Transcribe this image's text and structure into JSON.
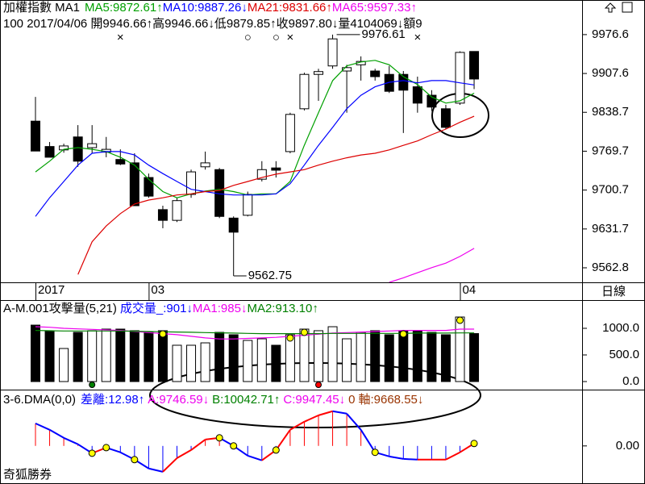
{
  "chart_data": [
    {
      "type": "candlestick",
      "title": "加權指數 MA1",
      "subtitle": "100 2017/04/06 開9946.66↑高9946.66↓低9879.85↑收9897.80↓量4104069↓額9",
      "axis_label": "日線",
      "categories": [
        "2017",
        null,
        null,
        null,
        null,
        null,
        null,
        null,
        "03",
        null,
        null,
        null,
        null,
        null,
        null,
        null,
        null,
        null,
        null,
        null,
        null,
        null,
        null,
        null,
        null,
        null,
        null,
        null,
        null,
        null,
        "04",
        null
      ],
      "open": [
        9823,
        9778,
        9772,
        9795,
        9776,
        9768,
        9755,
        9749,
        9723,
        9666,
        9647,
        9693,
        9742,
        9737,
        9651,
        9656,
        9720,
        9740,
        9769,
        9845,
        9906,
        9921,
        9912,
        9923,
        9912,
        9906,
        9906,
        9884,
        9869,
        9845,
        9855,
        9946.66
      ],
      "high": [
        9866,
        9786,
        9783,
        9816,
        9816,
        9795,
        9773,
        9766,
        9730,
        9673,
        9687,
        9737,
        9769,
        9740,
        9654,
        9698,
        9752,
        9752,
        9838,
        9909,
        9916,
        9976.61,
        9923,
        9938,
        9916,
        9921,
        9912,
        9902,
        9878,
        9852,
        9947,
        9946.66
      ],
      "low": [
        9770,
        9759,
        9767,
        9742,
        9766,
        9759,
        9745,
        9673,
        9687,
        9633,
        9644,
        9687,
        9737,
        9651,
        9562.75,
        9654,
        9716,
        9723,
        9766,
        9842,
        9859,
        9916,
        9838,
        9895,
        9895,
        9873,
        9802,
        9838,
        9841,
        9809,
        9852,
        9879.85
      ],
      "close": [
        9770,
        9759,
        9779,
        9752,
        9783,
        9773,
        9747,
        9673,
        9690,
        9647,
        9682,
        9733,
        9749,
        9654,
        9626,
        9693,
        9737,
        9736,
        9835,
        9906,
        9911,
        9969,
        9918,
        9929,
        9902,
        9876,
        9878,
        9855,
        9848,
        9812,
        9945,
        9897.8
      ],
      "up_color": "#ffffff",
      "down_color": "#000000",
      "signals": [
        null,
        null,
        null,
        null,
        null,
        null,
        "×",
        null,
        null,
        null,
        null,
        null,
        null,
        null,
        null,
        "○",
        null,
        "○",
        "×",
        null,
        null,
        null,
        null,
        null,
        null,
        null,
        null,
        "×",
        null,
        null,
        null,
        null
      ],
      "signal_color": "#ff0000",
      "series": [
        {
          "name": "MA5:9872.61↑",
          "color": "#00a000",
          "values": [
            9733,
            9752,
            9773,
            9776,
            9773,
            9769,
            9759,
            9745,
            9720,
            9698,
            9687,
            9694,
            9699,
            9702,
            9698,
            9692,
            9694,
            9694,
            9716,
            9780,
            9838,
            9895,
            9921,
            9928,
            9931,
            9923,
            9902,
            9888,
            9866,
            9855,
            9859,
            9872.61
          ]
        },
        {
          "name": "MA10:9887.26↓",
          "color": "#0000ff",
          "values": [
            9654,
            9687,
            9716,
            9745,
            9766,
            9769,
            9769,
            9763,
            9745,
            9730,
            9716,
            9702,
            9698,
            9694,
            9692,
            9692,
            9692,
            9694,
            9712,
            9745,
            9780,
            9812,
            9845,
            9869,
            9884,
            9892,
            9895,
            9891,
            9895,
            9895,
            9891,
            9887.26
          ]
        },
        {
          "name": "MA21:9831.66↑",
          "color": "#dd0000",
          "values": [
            null,
            null,
            null,
            9551,
            9609,
            9637,
            9659,
            9676,
            9683,
            9687,
            9692,
            9694,
            9698,
            9700,
            9709,
            9716,
            9723,
            9729,
            9733,
            9737,
            9745,
            9752,
            9758,
            9763,
            9766,
            9772,
            9780,
            9788,
            9799,
            9809,
            9821,
            9831.66
          ]
        },
        {
          "name": "MA65:9597.33↑",
          "color": "#ee00ee",
          "values": [
            null,
            null,
            null,
            null,
            null,
            null,
            null,
            null,
            null,
            null,
            null,
            null,
            null,
            null,
            null,
            null,
            null,
            null,
            null,
            null,
            null,
            null,
            null,
            null,
            null,
            9537,
            9545,
            9554,
            9563,
            9571,
            9583,
            9597.33
          ]
        }
      ],
      "ylim": [
        9537,
        10038
      ],
      "yticks": [
        9976.6,
        9907.6,
        9838.7,
        9769.7,
        9700.7,
        9631.7,
        9562.8
      ]
    },
    {
      "type": "bar",
      "title": "A-M.001攻擊量(5,21)",
      "name": "成交量_:901↓",
      "name_color": "#0000ff",
      "values": [
        1060,
        955,
        621,
        924,
        955,
        985,
        985,
        955,
        924,
        955,
        682,
        682,
        727,
        924,
        879,
        773,
        803,
        682,
        879,
        985,
        955,
        1030,
        803,
        924,
        955,
        879,
        955,
        955,
        924,
        879,
        1212,
        901
      ],
      "markers": [
        null,
        null,
        null,
        null,
        null,
        null,
        null,
        null,
        null,
        "#ffff00",
        null,
        null,
        null,
        null,
        null,
        null,
        null,
        null,
        "#ffff00",
        "#ffff00",
        null,
        null,
        null,
        null,
        null,
        null,
        "#ffff00",
        null,
        null,
        null,
        "#ffff00",
        null
      ],
      "base_markers": [
        null,
        null,
        null,
        null,
        "#008000",
        null,
        null,
        null,
        null,
        null,
        null,
        null,
        null,
        null,
        null,
        null,
        null,
        null,
        null,
        null,
        "#ff0000",
        null,
        null,
        null,
        null,
        null,
        null,
        null,
        null,
        null,
        null,
        null
      ],
      "series": [
        {
          "name": "MA1:985↓",
          "color": "#ee00ee",
          "values": [
            1030,
            1020,
            1000,
            990,
            980,
            970,
            960,
            940,
            920,
            900,
            880,
            850,
            820,
            800,
            800,
            810,
            820,
            830,
            850,
            870,
            890,
            910,
            920,
            930,
            940,
            950,
            960,
            960,
            960,
            960,
            985,
            985
          ]
        },
        {
          "name": "MA2:913.10↑",
          "color": "#008000",
          "values": [
            960,
            955,
            950,
            950,
            950,
            950,
            950,
            945,
            940,
            935,
            930,
            925,
            920,
            915,
            910,
            905,
            900,
            900,
            900,
            900,
            900,
            905,
            905,
            905,
            905,
            905,
            905,
            910,
            910,
            910,
            913.1,
            913.1
          ]
        }
      ],
      "ylim": [
        0,
        1250
      ],
      "yticks": [
        {
          "value": 1000,
          "label": "1000.0"
        },
        {
          "value": 500,
          "label": "500.0"
        },
        {
          "value": 0,
          "label": "0.0"
        }
      ]
    },
    {
      "type": "dma",
      "title": "3-6.DMA(0,0)",
      "series": [
        {
          "name": "差離:12.98↑",
          "color": "#0000ff",
          "values": [
            120,
            86,
            43,
            9,
            -39,
            -9,
            -34,
            -73,
            -120,
            -138,
            -65,
            -22,
            34,
            43,
            0,
            -52,
            -77,
            -22,
            86,
            129,
            163,
            185,
            172,
            86,
            -34,
            -56,
            -69,
            -73,
            -73,
            -73,
            -34,
            12.98
          ]
        }
      ],
      "legend_texts": [
        {
          "text": "A:9746.59↓",
          "color": "#ee00ee"
        },
        {
          "text": "B:10042.71↑",
          "color": "#008000"
        },
        {
          "text": "C:9947.45↓",
          "color": "#ee00ee"
        },
        {
          "text": "0",
          "color": "#993300"
        },
        {
          "text": "軸:9668.55↓",
          "color": "#993300"
        }
      ],
      "up_color": "#ff0000",
      "down_color": "#0000ff",
      "markers": [
        null,
        null,
        null,
        null,
        "#ffff00",
        "#ffff00",
        null,
        "#ffff00",
        null,
        null,
        null,
        null,
        null,
        "#ffff00",
        "#ffff00",
        null,
        null,
        "#ffff00",
        null,
        null,
        null,
        null,
        null,
        null,
        "#ffff00",
        null,
        null,
        null,
        null,
        null,
        null,
        "#ffff00"
      ],
      "ylim": [
        -190,
        270
      ],
      "yticks": [
        {
          "value": 0,
          "label": "0.00"
        }
      ]
    }
  ],
  "footer": "奇狐勝券"
}
